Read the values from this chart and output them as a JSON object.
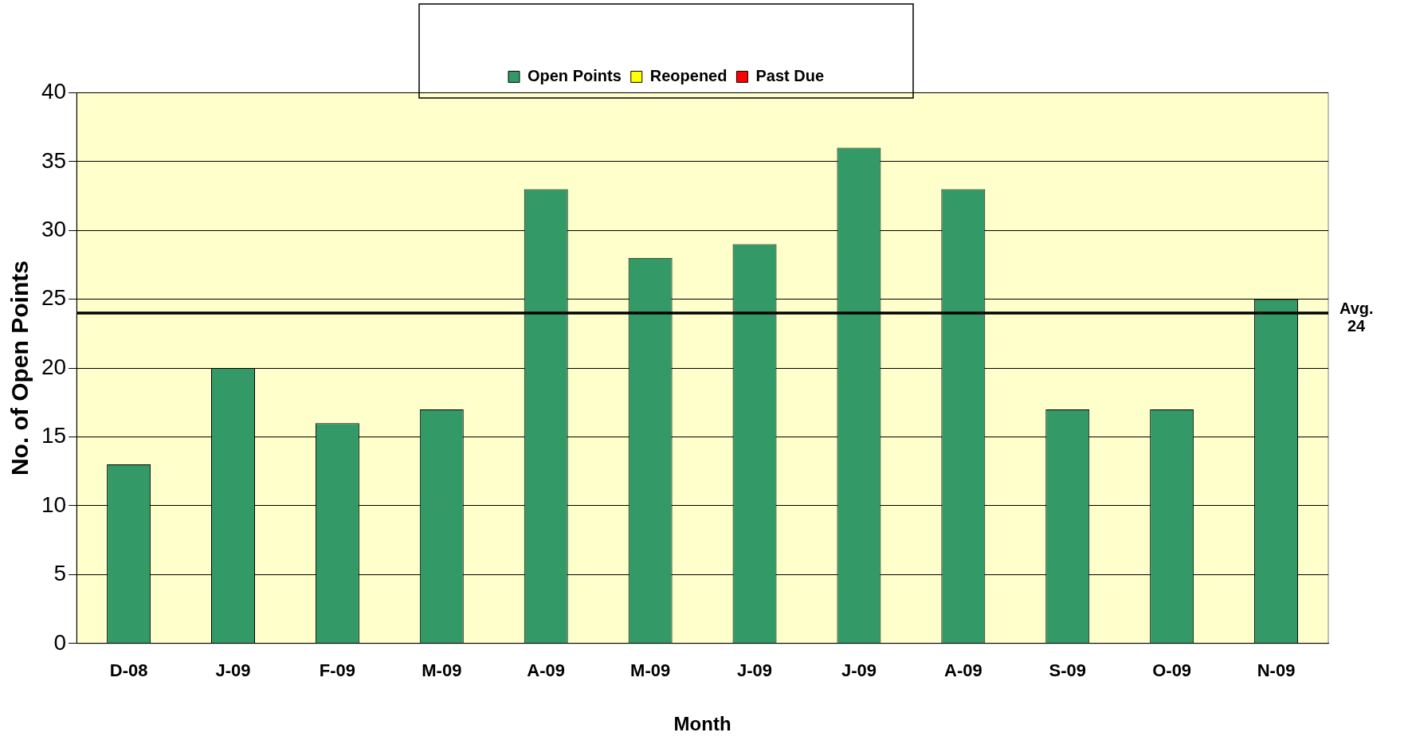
{
  "chart_data": {
    "type": "bar",
    "xlabel": "Month",
    "ylabel": "No. of Open Points",
    "categories": [
      "D-08",
      "J-09",
      "F-09",
      "M-09",
      "A-09",
      "M-09",
      "J-09",
      "J-09",
      "A-09",
      "S-09",
      "O-09",
      "N-09"
    ],
    "series": [
      {
        "name": "Open Points",
        "color": "#339966",
        "values": [
          13,
          20,
          16,
          17,
          33,
          28,
          29,
          36,
          33,
          17,
          17,
          25
        ]
      },
      {
        "name": "Reopened",
        "color": "#ffff00",
        "values": [
          0,
          0,
          0,
          0,
          0,
          0,
          0,
          0,
          0,
          0,
          0,
          0
        ]
      },
      {
        "name": "Past Due",
        "color": "#ff0000",
        "values": [
          0,
          0,
          0,
          0,
          0,
          0,
          0,
          0,
          0,
          0,
          0,
          0
        ]
      }
    ],
    "stacked": true,
    "ylim": [
      0,
      40
    ],
    "yticks": [
      0,
      5,
      10,
      15,
      20,
      25,
      30,
      35,
      40
    ],
    "grid": "y",
    "legend": "top",
    "ref_lines": [
      {
        "axis": "y",
        "value": 24,
        "label": "Avg. 24",
        "color": "#000000"
      }
    ]
  }
}
